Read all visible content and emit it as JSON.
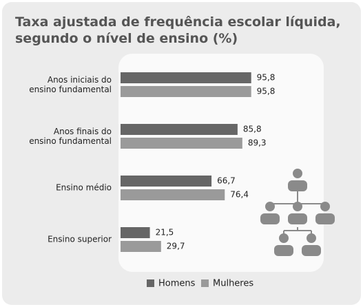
{
  "chart_data": {
    "type": "hbar",
    "title": "Taxa ajustada de frequência escolar líquida,\nsegundo o nível de ensino (%)",
    "categories": [
      "Anos iniciais do\nensino fundamental",
      "Anos finais do\nensino fundamental",
      "Ensino médio",
      "Ensino superior"
    ],
    "series": [
      {
        "name": "Homens",
        "color": "#666666",
        "values": [
          95.8,
          85.8,
          66.7,
          21.5
        ],
        "value_labels": [
          "95,8",
          "85,8",
          "66,7",
          "21,5"
        ]
      },
      {
        "name": "Mulheres",
        "color": "#9a9a9a",
        "values": [
          95.8,
          89.3,
          76.4,
          29.7
        ],
        "value_labels": [
          "95,8",
          "89,3",
          "76,4",
          "29,7"
        ]
      }
    ],
    "xlim": [
      0,
      100
    ]
  }
}
